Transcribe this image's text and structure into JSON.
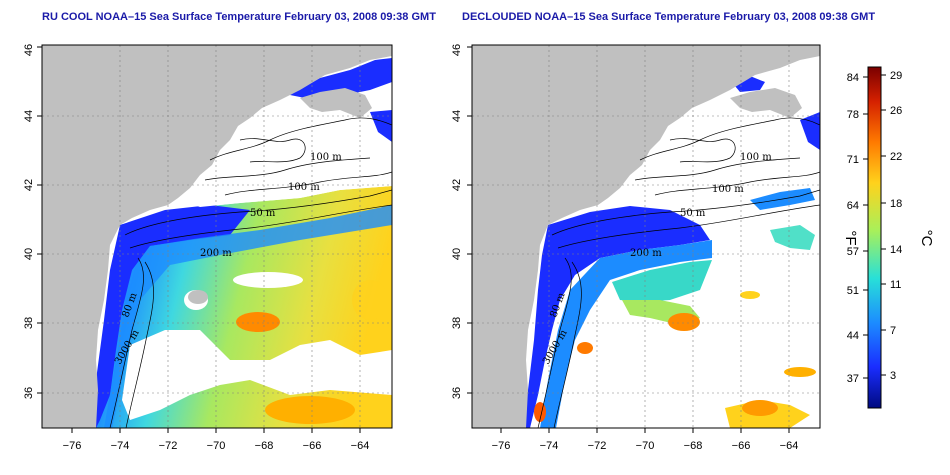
{
  "panels": {
    "left": {
      "title": "RU COOL NOAA–15 Sea Surface Temperature February 03, 2008 09:38 GMT"
    },
    "right": {
      "title": "DECLOUDED NOAA–15 Sea Surface Temperature February 03, 2008 09:38 GMT"
    }
  },
  "axes": {
    "lon_ticks": [
      "−76",
      "−74",
      "−72",
      "−70",
      "−68",
      "−66",
      "−64"
    ],
    "lat_ticks": [
      "36",
      "38",
      "40",
      "42",
      "44",
      "46"
    ]
  },
  "contour_labels": {
    "c100a": "100 m",
    "c100b": "100 m",
    "c50": "50 m",
    "c200": "200 m",
    "c80": "80 m",
    "c3000": "3000 m"
  },
  "colorbar": {
    "fahrenheit_unit": "°F",
    "celsius_unit": "°C",
    "fahrenheit_ticks": [
      "84",
      "78",
      "71",
      "64",
      "57",
      "51",
      "44",
      "37"
    ],
    "celsius_ticks": [
      "29",
      "26",
      "22",
      "18",
      "14",
      "11",
      "7",
      "3"
    ],
    "colors": [
      "#7a0000",
      "#d42000",
      "#ff7a00",
      "#ffd21c",
      "#a8f05a",
      "#28e0d8",
      "#1c8cff",
      "#1a2dff",
      "#000a80"
    ]
  },
  "colors": {
    "land": "#c0c0c0",
    "ocean_no_data": "#ffffff",
    "title": "#1a1aa8"
  }
}
